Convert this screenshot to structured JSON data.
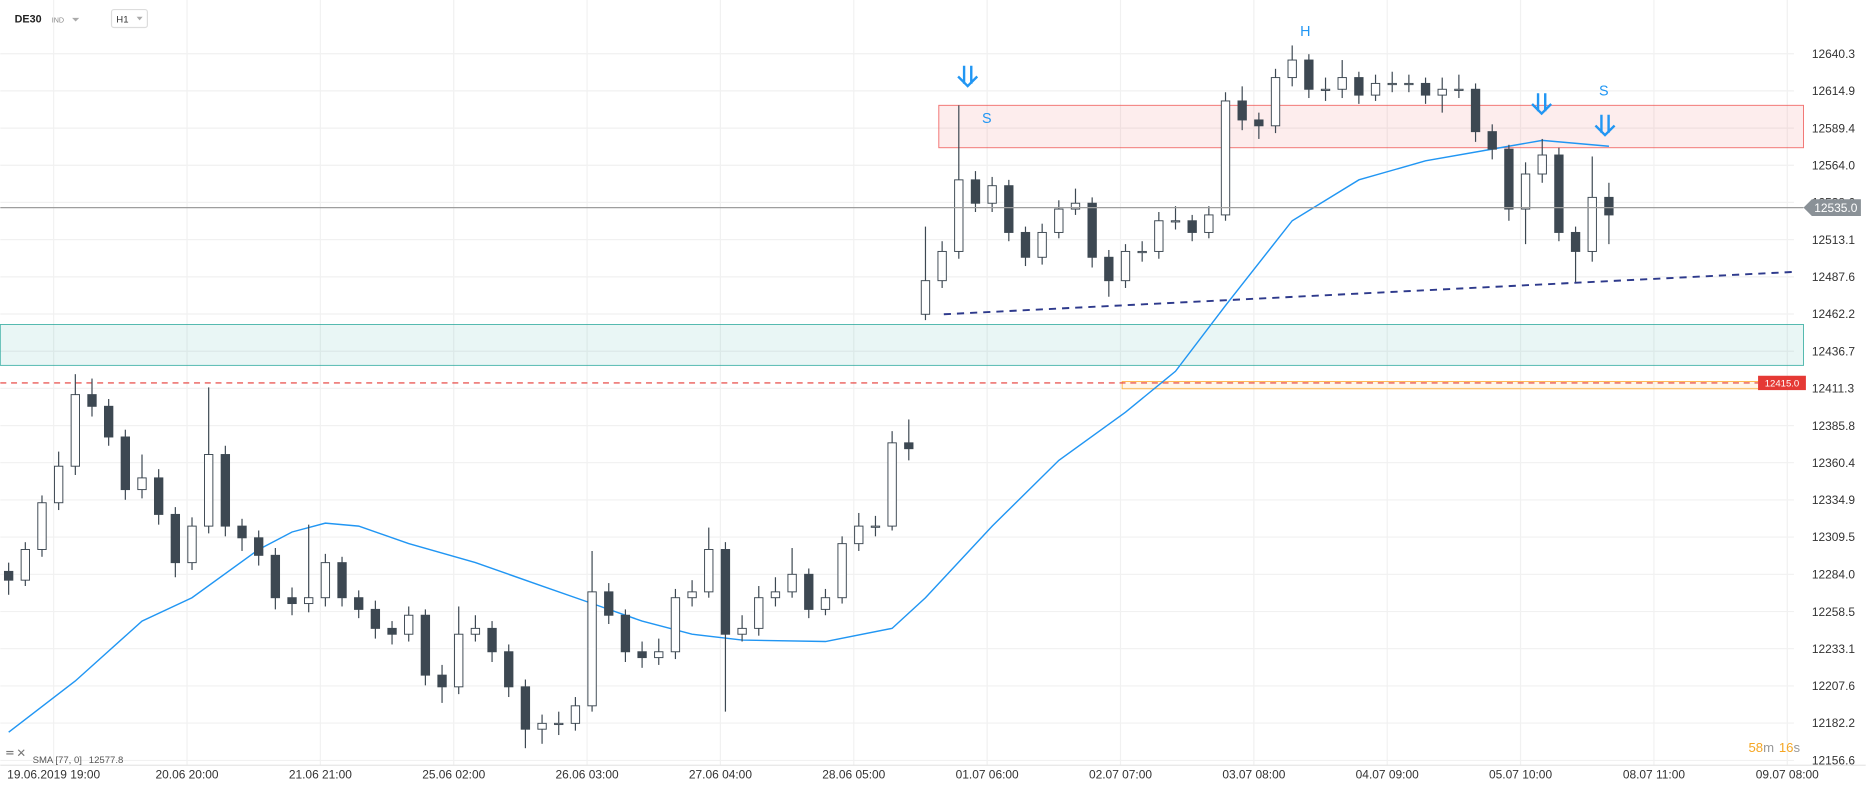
{
  "header": {
    "symbol": "DE30",
    "symbol_type": "IND",
    "timeframe": "H1"
  },
  "chart_data": {
    "type": "candlestick",
    "xlim": [
      -0.5,
      107.1
    ],
    "ylim": [
      12153.3,
      12677.1
    ],
    "xticks": [
      {
        "value": 2.7,
        "label": "19.06.2019 19:00"
      },
      {
        "value": 10.7,
        "label": "20.06 20:00"
      },
      {
        "value": 18.7,
        "label": "21.06 21:00"
      },
      {
        "value": 26.7,
        "label": "25.06 02:00"
      },
      {
        "value": 34.7,
        "label": "26.06 03:00"
      },
      {
        "value": 42.7,
        "label": "27.06 04:00"
      },
      {
        "value": 50.7,
        "label": "28.06 05:00"
      },
      {
        "value": 58.7,
        "label": "01.07 06:00"
      },
      {
        "value": 66.7,
        "label": "02.07 07:00"
      },
      {
        "value": 74.7,
        "label": "03.07 08:00"
      },
      {
        "value": 82.7,
        "label": "04.07 09:00"
      },
      {
        "value": 90.7,
        "label": "05.07 10:00"
      },
      {
        "value": 98.7,
        "label": "08.07 11:00"
      },
      {
        "value": 106.7,
        "label": "09.07 08:00"
      }
    ],
    "yticks": [
      12640.3,
      12614.9,
      12589.4,
      {
        "value": 12564,
        "label": "12564.0"
      },
      12538.6,
      12513.1,
      12487.6,
      12462.2,
      12436.7,
      12411.3,
      12385.8,
      12360.4,
      12334.9,
      12309.5,
      {
        "value": 12284,
        "label": "12284.0"
      },
      12258.5,
      12233.1,
      12207.6,
      12182.2,
      12156.6
    ],
    "grid": true,
    "up_color": "#ffffff",
    "down_color": "#3d4852",
    "open": [
      12286,
      12280,
      12301,
      12333,
      12358,
      12407,
      12399,
      12378,
      12342,
      12350,
      12325,
      12292,
      12317,
      12366,
      12317,
      12309,
      12297,
      12268,
      12264,
      12268,
      12292,
      12268,
      12260,
      12247,
      12243,
      12256,
      12215,
      12207,
      12243,
      12247,
      12231,
      12207,
      12178,
      12182,
      12182,
      12194,
      12272,
      12256,
      12231,
      12227,
      12231,
      12268,
      12272,
      12301,
      12243,
      12247,
      12268,
      12272,
      12284,
      12260,
      12268,
      12305,
      12317,
      12317,
      12374,
      12462,
      12485,
      12505,
      12554,
      12538,
      12550,
      12518,
      12501,
      12518,
      12534,
      12538,
      12501,
      12485,
      12505,
      12505,
      12526,
      12526,
      12518,
      12530,
      12608,
      12595,
      12591,
      12624,
      12636,
      12616,
      12616,
      12624,
      12612,
      12620,
      12620,
      12620,
      12612,
      12616,
      12616,
      12587,
      12575,
      12534,
      12558,
      12571,
      12518,
      12505,
      12542
    ],
    "high": [
      12292,
      12306,
      12338,
      12368,
      12421,
      12418,
      12404,
      12383,
      12366,
      12356,
      12330,
      12323,
      12412,
      12372,
      12322,
      12314,
      12302,
      12275,
      12318,
      12298,
      12296,
      12273,
      12266,
      12252,
      12262,
      12260,
      12222,
      12262,
      12256,
      12252,
      12236,
      12212,
      12188,
      12190,
      12200,
      12300,
      12278,
      12260,
      12238,
      12240,
      12274,
      12280,
      12316,
      12306,
      12256,
      12276,
      12282,
      12302,
      12288,
      12274,
      12310,
      12326,
      12324,
      12382,
      12390,
      12522,
      12512,
      12605,
      12560,
      12556,
      12554,
      12522,
      12524,
      12540,
      12548,
      12542,
      12506,
      12510,
      12512,
      12532,
      12536,
      12530,
      12536,
      12614,
      12618,
      12600,
      12630,
      12646,
      12640,
      12624,
      12636,
      12628,
      12626,
      12628,
      12626,
      12624,
      12624,
      12626,
      12620,
      12592,
      12578,
      12566,
      12582,
      12576,
      12522,
      12570,
      12552
    ],
    "low": [
      12270,
      12276,
      12296,
      12328,
      12352,
      12392,
      12372,
      12335,
      12336,
      12318,
      12282,
      12287,
      12312,
      12310,
      12300,
      12290,
      12260,
      12256,
      12258,
      12262,
      12262,
      12254,
      12240,
      12236,
      12238,
      12208,
      12196,
      12202,
      12238,
      12224,
      12200,
      12165,
      12168,
      12174,
      12177,
      12190,
      12250,
      12224,
      12220,
      12222,
      12226,
      12262,
      12268,
      12190,
      12238,
      12242,
      12262,
      12268,
      12254,
      12256,
      12264,
      12300,
      12310,
      12314,
      12362,
      12458,
      12480,
      12500,
      12532,
      12532,
      12512,
      12495,
      12496,
      12514,
      12530,
      12494,
      12474,
      12480,
      12498,
      12500,
      12520,
      12512,
      12514,
      12526,
      12588,
      12582,
      12586,
      12618,
      12610,
      12608,
      12610,
      12606,
      12608,
      12614,
      12614,
      12606,
      12600,
      12610,
      12580,
      12568,
      12526,
      12510,
      12552,
      12512,
      12484,
      12498,
      12510
    ],
    "close": [
      12280,
      12301,
      12333,
      12358,
      12407,
      12399,
      12378,
      12342,
      12350,
      12325,
      12292,
      12317,
      12366,
      12317,
      12309,
      12297,
      12268,
      12264,
      12268,
      12292,
      12268,
      12260,
      12247,
      12243,
      12256,
      12215,
      12207,
      12243,
      12247,
      12231,
      12207,
      12178,
      12182,
      12182,
      12194,
      12272,
      12256,
      12231,
      12227,
      12231,
      12268,
      12272,
      12301,
      12243,
      12247,
      12268,
      12272,
      12284,
      12260,
      12268,
      12305,
      12317,
      12317,
      12374,
      12370,
      12485,
      12505,
      12554,
      12538,
      12550,
      12518,
      12501,
      12518,
      12534,
      12538,
      12501,
      12485,
      12505,
      12505,
      12526,
      12526,
      12518,
      12530,
      12608,
      12595,
      12591,
      12624,
      12636,
      12616,
      12616,
      12624,
      12612,
      12620,
      12620,
      12620,
      12612,
      12616,
      12616,
      12587,
      12575,
      12534,
      12558,
      12571,
      12518,
      12505,
      12542,
      12530
    ],
    "sma": {
      "name": "SMA [77, 0]",
      "value": 12577.8,
      "color": "#2196f3",
      "x": [
        0,
        4,
        8,
        11,
        15,
        17,
        19,
        21,
        24,
        28,
        32,
        35,
        38,
        41,
        44,
        49,
        53,
        55,
        59,
        63,
        67,
        70,
        73,
        77,
        81,
        85,
        89,
        92,
        96
      ],
      "values": [
        12176,
        12211,
        12252,
        12268,
        12301,
        12313,
        12319,
        12317,
        12305,
        12292,
        12276,
        12264,
        12252,
        12243,
        12239,
        12238,
        12247,
        12268,
        12317,
        12362,
        12395,
        12423,
        12468,
        12526,
        12554,
        12567,
        12575,
        12581,
        12577
      ]
    },
    "last_price": {
      "value": 12535,
      "label": "12535.0"
    },
    "level": {
      "value": 12415,
      "label": "12415.0",
      "color": "#e53935"
    },
    "zones": [
      {
        "from": 12576,
        "to": 12605,
        "x_start": 55.8,
        "color": "#ef5350"
      },
      {
        "from": 12427,
        "to": 12455,
        "x_start": -0.5,
        "color": "#26a69a"
      },
      {
        "from": 12411,
        "to": 12416,
        "x_start": 66.8,
        "color": "#ffa726"
      }
    ],
    "trendline": {
      "x": [
        56.1,
        107.1
      ],
      "values": [
        12462,
        12491
      ],
      "color": "#2e3a8c"
    },
    "annotations": [
      "S",
      "H",
      "S"
    ],
    "countdown": [
      "58",
      "m",
      "16",
      "s"
    ]
  }
}
